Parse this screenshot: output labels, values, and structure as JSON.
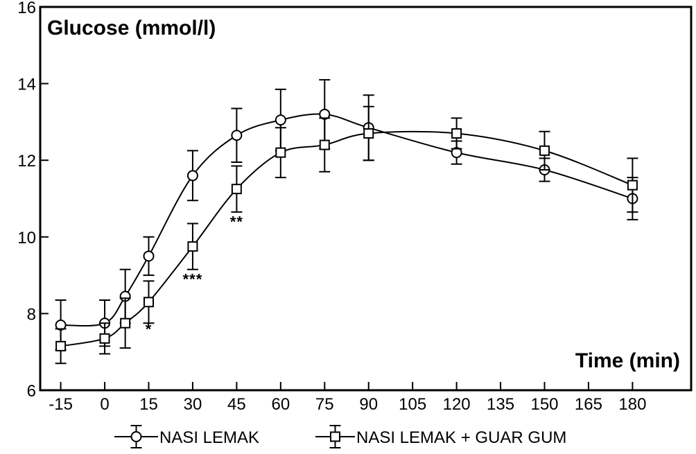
{
  "chart_data": {
    "type": "line",
    "ylabel": "Glucose (mmol/l)",
    "xlabel": "Time (min)",
    "xlim": [
      -22,
      200
    ],
    "ylim": [
      6,
      16
    ],
    "x_ticks": [
      -15,
      0,
      15,
      30,
      45,
      60,
      75,
      90,
      105,
      120,
      135,
      150,
      165,
      180
    ],
    "y_ticks": [
      6,
      8,
      10,
      12,
      14,
      16
    ],
    "grid": false,
    "legend_position": "bottom",
    "series": [
      {
        "name": "NASI LEMAK",
        "marker": "circle",
        "x": [
          -15,
          0,
          7,
          15,
          30,
          45,
          60,
          75,
          90,
          120,
          150,
          180
        ],
        "y": [
          7.7,
          7.75,
          8.45,
          9.5,
          11.6,
          12.65,
          13.05,
          13.2,
          12.85,
          12.2,
          11.75,
          11.0
        ],
        "err": [
          0.65,
          0.6,
          0.7,
          0.5,
          0.65,
          0.7,
          0.8,
          0.9,
          0.85,
          0.3,
          0.3,
          0.55
        ]
      },
      {
        "name": "NASI LEMAK + GUAR GUM",
        "marker": "square",
        "x": [
          -15,
          0,
          7,
          15,
          30,
          45,
          60,
          75,
          90,
          120,
          150,
          180
        ],
        "y": [
          7.15,
          7.35,
          7.75,
          8.3,
          9.75,
          11.25,
          12.2,
          12.4,
          12.7,
          12.7,
          12.25,
          11.35
        ],
        "err": [
          0.45,
          0.4,
          0.65,
          0.55,
          0.6,
          0.6,
          0.65,
          0.7,
          0.7,
          0.4,
          0.5,
          0.7
        ]
      }
    ],
    "annotations": [
      {
        "text": "*",
        "x": 15,
        "y": 7.6
      },
      {
        "text": "***",
        "x": 30,
        "y": 8.9
      },
      {
        "text": "**",
        "x": 45,
        "y": 10.4
      }
    ]
  }
}
